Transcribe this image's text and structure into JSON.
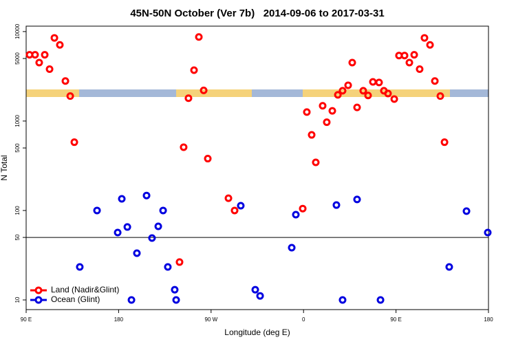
{
  "chart_data": {
    "type": "scatter",
    "title": "45N-50N October (Ver 7b)   2014-09-06 to 2017-03-31",
    "xlabel": "Longitude (deg E)",
    "ylabel": "N Total",
    "log_y": true,
    "xlim": [
      90,
      540
    ],
    "ylim": [
      7.8,
      11500
    ],
    "xticks": [
      {
        "value": 90,
        "label": "90 E"
      },
      180,
      {
        "value": 270,
        "label": "90 W"
      },
      {
        "value": 360,
        "label": "0"
      },
      {
        "value": 450,
        "label": "90 E"
      },
      {
        "value": 540,
        "label": "180"
      }
    ],
    "yticks": [
      10,
      50,
      100,
      500,
      1000,
      5000,
      10000
    ],
    "reference_line": 50,
    "legend": "bottom-left",
    "series": [
      {
        "name": "Land (Nadir&Glint)",
        "color": "#ff0000",
        "x": [
          93.3,
          98.7,
          102.7,
          108.1,
          112.8,
          117.5,
          122.8,
          128.2,
          132.9,
          136.9,
          243.3,
          248.0,
          253.4,
          258.1,
          262.8,
          266.8,
          239.3,
          286.9,
          292.9,
          359.2,
          363.2,
          367.9,
          371.9,
          378.6,
          382.6,
          388.0,
          393.4,
          398.0,
          403.4,
          407.4,
          412.1,
          418.1,
          422.8,
          427.5,
          433.5,
          438.2,
          442.2,
          448.3,
          452.9,
          458.3,
          463.0,
          467.7,
          473.0,
          477.7,
          483.1,
          487.8,
          493.1,
          497.2
        ],
        "values": [
          5500,
          5500,
          4500,
          5500,
          3800,
          8500,
          7100,
          2800,
          1900,
          580,
          510,
          1800,
          3700,
          8700,
          2200,
          380,
          26.5,
          137,
          100,
          105,
          1260,
          700,
          345,
          1480,
          970,
          1300,
          1960,
          2180,
          2510,
          4500,
          1420,
          2180,
          1930,
          2740,
          2700,
          2180,
          2030,
          1760,
          5400,
          5400,
          4500,
          5500,
          3800,
          8500,
          7100,
          2800,
          1900,
          580
        ]
      },
      {
        "name": "Ocean (Glint)",
        "color": "#0000e0",
        "x": [
          142.2,
          159.0,
          179.1,
          183.1,
          188.5,
          192.5,
          197.8,
          207.2,
          212.5,
          218.6,
          223.3,
          227.9,
          234.6,
          236.0,
          298.9,
          313.0,
          317.7,
          348.5,
          352.5,
          392.0,
          398.0,
          412.1,
          434.9,
          501.8,
          518.6,
          539.3
        ],
        "values": [
          23.4,
          100,
          56.7,
          135,
          65.4,
          10,
          33.3,
          147,
          49.2,
          66.5,
          100,
          23.4,
          13.0,
          10,
          113,
          13.0,
          11.1,
          38.4,
          89.9,
          115,
          10,
          133,
          10,
          23.4,
          98.4,
          56.7
        ]
      }
    ]
  }
}
